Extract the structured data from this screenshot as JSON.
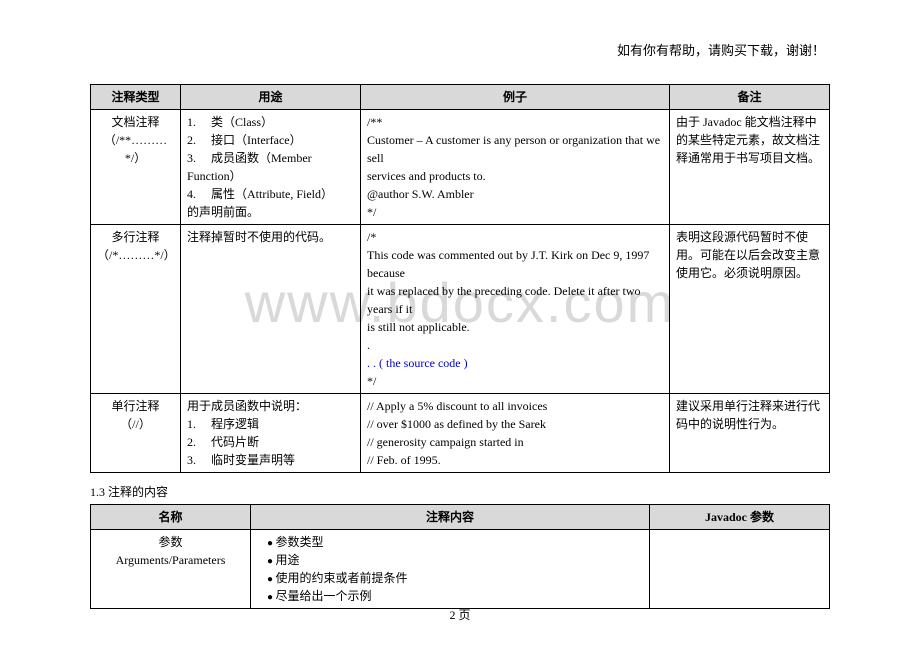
{
  "header_note": "如有你有帮助，请购买下载，谢谢！",
  "watermark": "www.bdocx.com",
  "page_number": "2 页",
  "section_title": "1.3  注释的内容",
  "table1": {
    "headers": {
      "c1": "注释类型",
      "c2": "用途",
      "c3": "例子",
      "c4": "备注"
    },
    "rows": [
      {
        "type_l1": "文档注释",
        "type_l2": "（/**………*/）",
        "use_items": [
          "1.　 类（Class）",
          "2.　 接口（Interface）",
          "3.　 成员函数（Member Function）",
          "4.　 属性（Attribute, Field）"
        ],
        "use_tail": "的声明前面。",
        "example": [
          "/**",
          "Customer – A customer is any person or organization that we sell",
          "services and products to.",
          "@author S.W. Ambler",
          "*/"
        ],
        "remark": "由于 Javadoc 能文档注释中的某些特定元素，故文档注释通常用于书写项目文档。"
      },
      {
        "type_l1": "多行注释",
        "type_l2": "（/*………*/）",
        "use_plain": "注释掉暂时不使用的代码。",
        "example_pre": [
          "/*",
          "This code was commented out by J.T. Kirk on Dec 9, 1997 because",
          "it was replaced by the preceding code. Delete it after two years if it",
          "is still not applicable.",
          "."
        ],
        "example_blue": ". . ( the source code )",
        "example_post": [
          "*/"
        ],
        "remark": "表明这段源代码暂时不使用。可能在以后会改变主意使用它。必须说明原因。"
      },
      {
        "type_l1": "单行注释",
        "type_l2": "（//）",
        "use_head": "用于成员函数中说明：",
        "use_items": [
          "1.　 程序逻辑",
          "2.　 代码片断",
          "3.　 临时变量声明等"
        ],
        "example": [
          "// Apply a 5% discount to all invoices",
          "// over $1000 as defined by the Sarek",
          "// generosity campaign started in",
          "// Feb. of 1995."
        ],
        "remark": "建议采用单行注释来进行代码中的说明性行为。"
      }
    ]
  },
  "table2": {
    "headers": {
      "c1": "名称",
      "c2": "注释内容",
      "c3": "Javadoc 参数"
    },
    "row": {
      "name_l1": "参数",
      "name_l2": "Arguments/Parameters",
      "bullets": [
        "参数类型",
        "用途",
        "使用的约束或者前提条件",
        "尽量给出一个示例"
      ]
    }
  }
}
